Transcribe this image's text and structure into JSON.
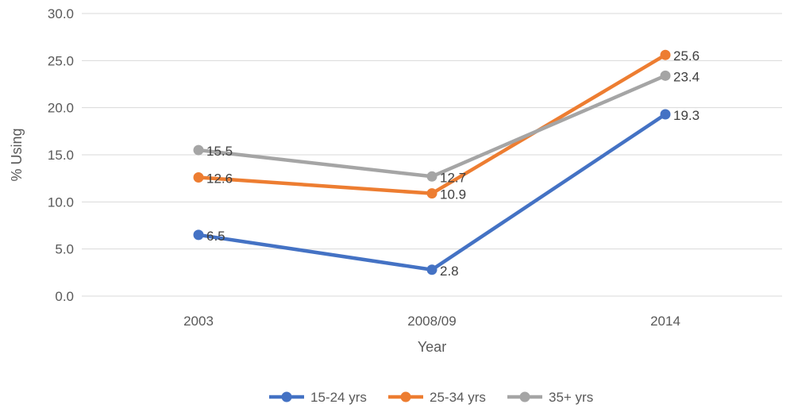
{
  "chart_data": {
    "type": "line",
    "categories": [
      "2003",
      "2008/09",
      "2014"
    ],
    "series": [
      {
        "name": "15-24 yrs",
        "values": [
          6.5,
          2.8,
          19.3
        ],
        "labels": [
          "6.5",
          "2.8",
          "19.3"
        ],
        "color": "#4472C4"
      },
      {
        "name": "25-34 yrs",
        "values": [
          12.6,
          10.9,
          25.6
        ],
        "labels": [
          "12.6",
          "10.9",
          "25.6"
        ],
        "color": "#ED7D31"
      },
      {
        "name": "35+ yrs",
        "values": [
          15.5,
          12.7,
          23.4
        ],
        "labels": [
          "15.5",
          "12.7",
          "23.4"
        ],
        "color": "#A5A5A5"
      }
    ],
    "xlabel": "Year",
    "ylabel": "% Using",
    "ylim": [
      0,
      30
    ],
    "yticks": [
      "0.0",
      "5.0",
      "10.0",
      "15.0",
      "20.0",
      "25.0",
      "30.0"
    ],
    "grid": true,
    "legend_position": "bottom"
  }
}
